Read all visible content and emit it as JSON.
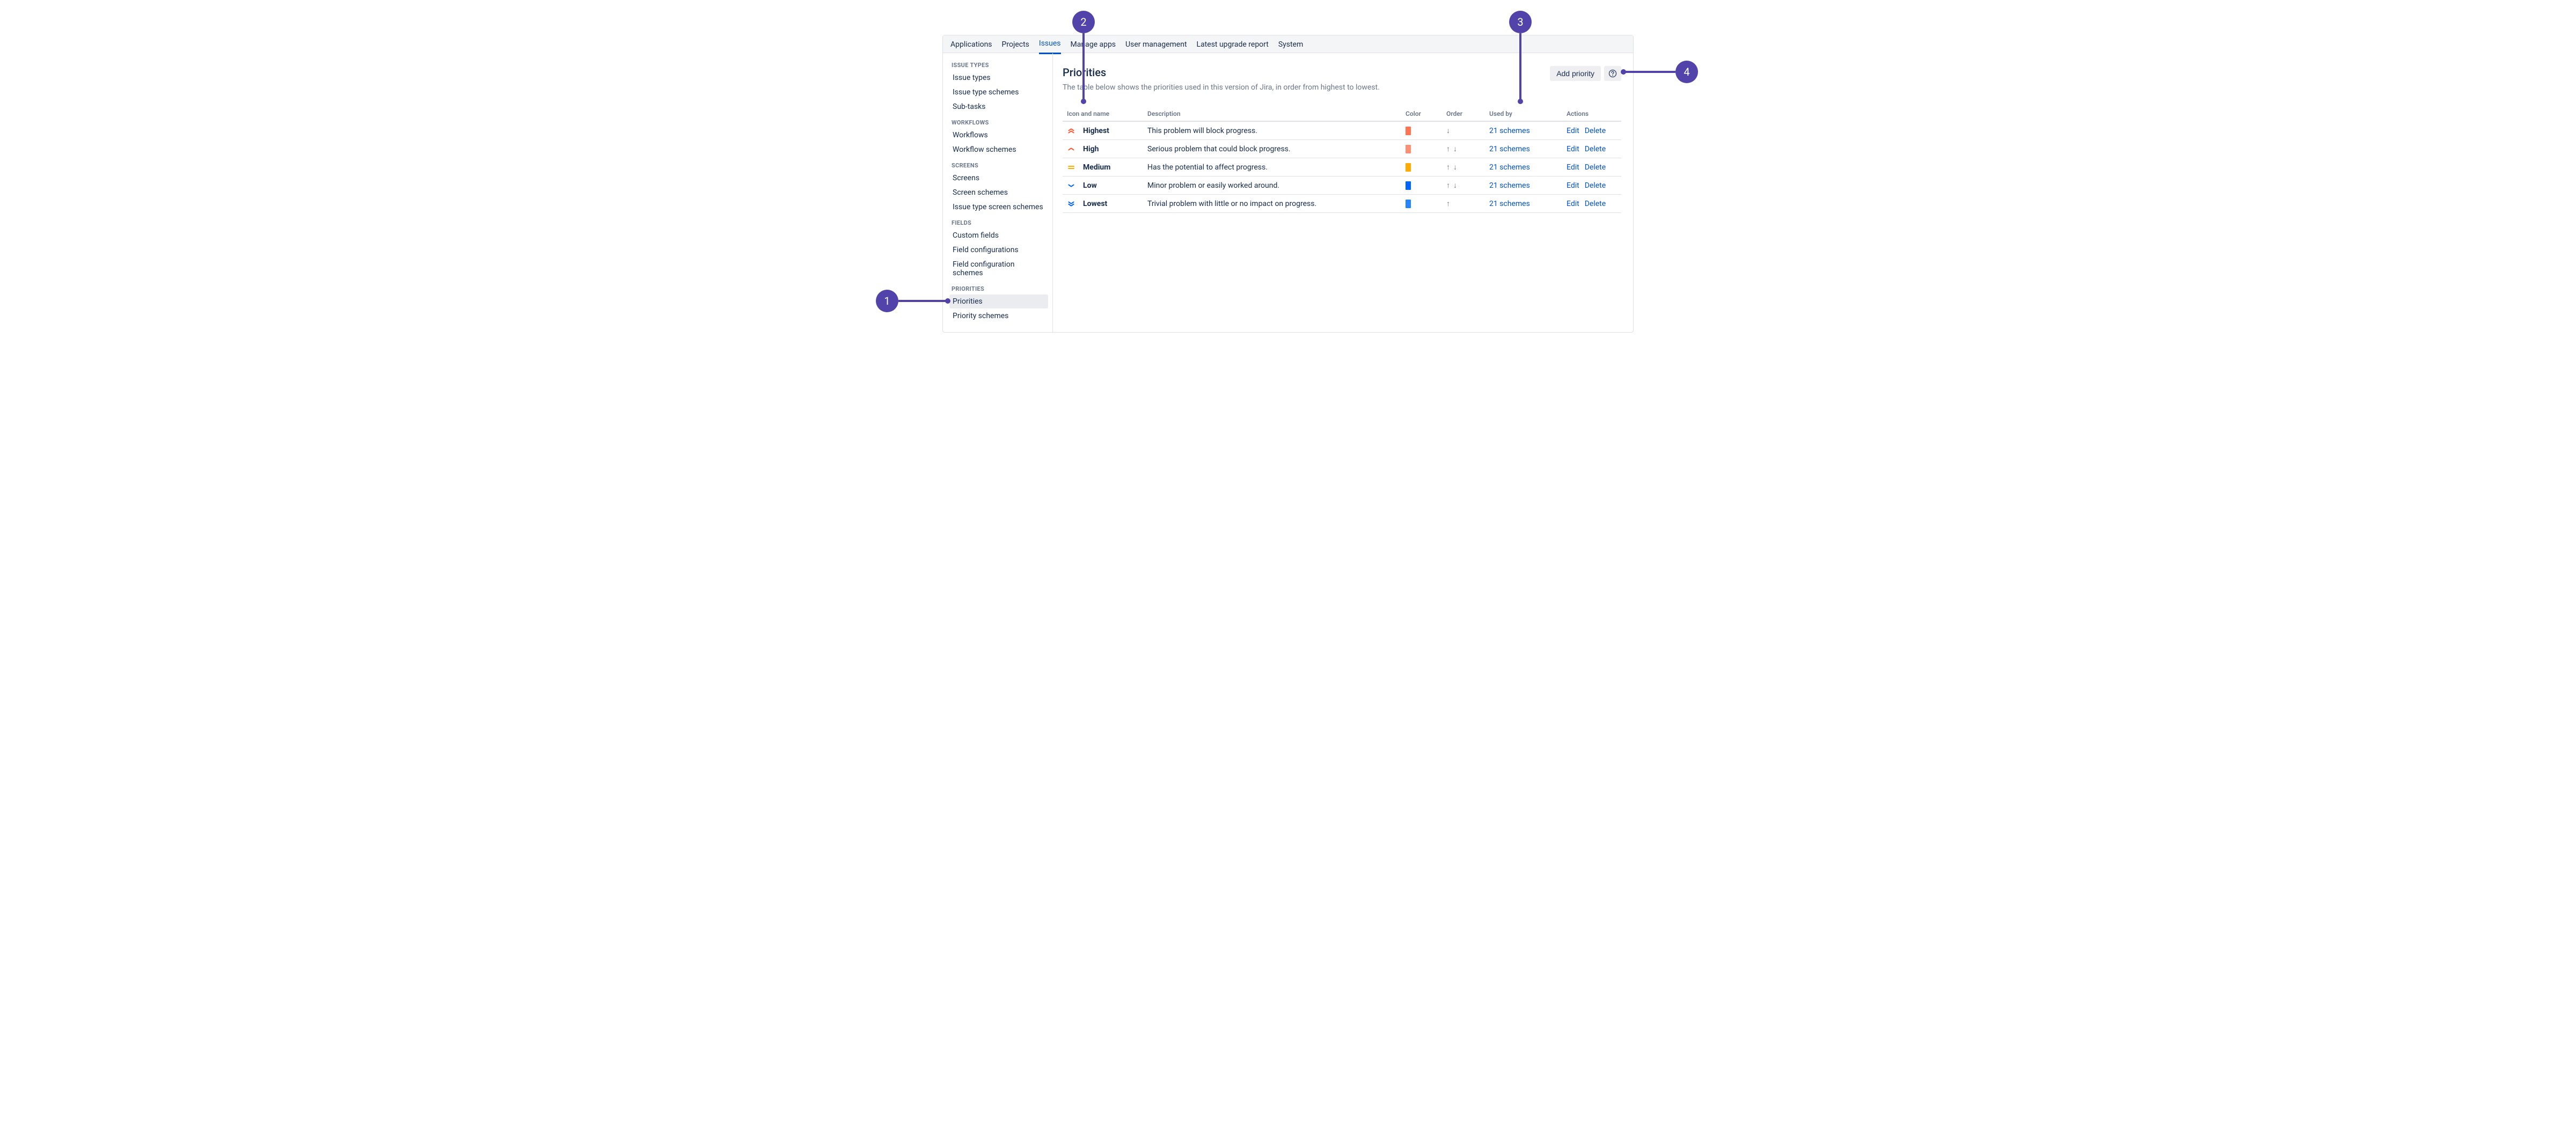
{
  "colors": {
    "accent": "#0052cc",
    "callout": "#5243aa",
    "muted": "#6b778c",
    "border": "#dfe1e6",
    "panel": "#f4f5f7",
    "row_hover": "#ebecf0"
  },
  "topnav": {
    "items": [
      {
        "label": "Applications",
        "active": false
      },
      {
        "label": "Projects",
        "active": false
      },
      {
        "label": "Issues",
        "active": true
      },
      {
        "label": "Manage apps",
        "active": false
      },
      {
        "label": "User management",
        "active": false
      },
      {
        "label": "Latest upgrade report",
        "active": false
      },
      {
        "label": "System",
        "active": false
      }
    ]
  },
  "sidebar": {
    "groups": [
      {
        "title": "ISSUE TYPES",
        "items": [
          {
            "label": "Issue types",
            "active": false
          },
          {
            "label": "Issue type schemes",
            "active": false
          },
          {
            "label": "Sub-tasks",
            "active": false
          }
        ]
      },
      {
        "title": "WORKFLOWS",
        "items": [
          {
            "label": "Workflows",
            "active": false
          },
          {
            "label": "Workflow schemes",
            "active": false
          }
        ]
      },
      {
        "title": "SCREENS",
        "items": [
          {
            "label": "Screens",
            "active": false
          },
          {
            "label": "Screen schemes",
            "active": false
          },
          {
            "label": "Issue type screen schemes",
            "active": false
          }
        ]
      },
      {
        "title": "FIELDS",
        "items": [
          {
            "label": "Custom fields",
            "active": false
          },
          {
            "label": "Field configurations",
            "active": false
          },
          {
            "label": "Field configuration schemes",
            "active": false
          }
        ]
      },
      {
        "title": "PRIORITIES",
        "items": [
          {
            "label": "Priorities",
            "active": true
          },
          {
            "label": "Priority schemes",
            "active": false
          }
        ]
      }
    ]
  },
  "page": {
    "title": "Priorities",
    "description": "The table below shows the priorities used in this version of Jira, in order from highest to lowest.",
    "add_button": "Add priority"
  },
  "table": {
    "columns": [
      "Icon and name",
      "Description",
      "Color",
      "Order",
      "Used by",
      "Actions"
    ],
    "col_widths": [
      "150px",
      "auto",
      "76px",
      "80px",
      "144px",
      "110px"
    ],
    "edit_label": "Edit",
    "delete_label": "Delete",
    "rows": [
      {
        "name": "Highest",
        "description": "This problem will block progress.",
        "icon": "highest",
        "icon_color": "#ff5630",
        "swatch": "#ff7452",
        "order": [
          "down"
        ],
        "used_by": "21 schemes"
      },
      {
        "name": "High",
        "description": "Serious problem that could block progress.",
        "icon": "high",
        "icon_color": "#ff5630",
        "swatch": "#ff8f73",
        "order": [
          "up",
          "down"
        ],
        "used_by": "21 schemes"
      },
      {
        "name": "Medium",
        "description": "Has the potential to affect progress.",
        "icon": "medium",
        "icon_color": "#ffab00",
        "swatch": "#ffab00",
        "order": [
          "up",
          "down"
        ],
        "used_by": "21 schemes"
      },
      {
        "name": "Low",
        "description": "Minor problem or easily worked around.",
        "icon": "low",
        "icon_color": "#0065ff",
        "swatch": "#0065ff",
        "order": [
          "up",
          "down"
        ],
        "used_by": "21 schemes"
      },
      {
        "name": "Lowest",
        "description": "Trivial problem with little or no impact on progress.",
        "icon": "lowest",
        "icon_color": "#0065ff",
        "swatch": "#2684ff",
        "order": [
          "up"
        ],
        "used_by": "21 schemes"
      }
    ]
  },
  "callouts": [
    {
      "n": "1"
    },
    {
      "n": "2"
    },
    {
      "n": "3"
    },
    {
      "n": "4"
    }
  ]
}
